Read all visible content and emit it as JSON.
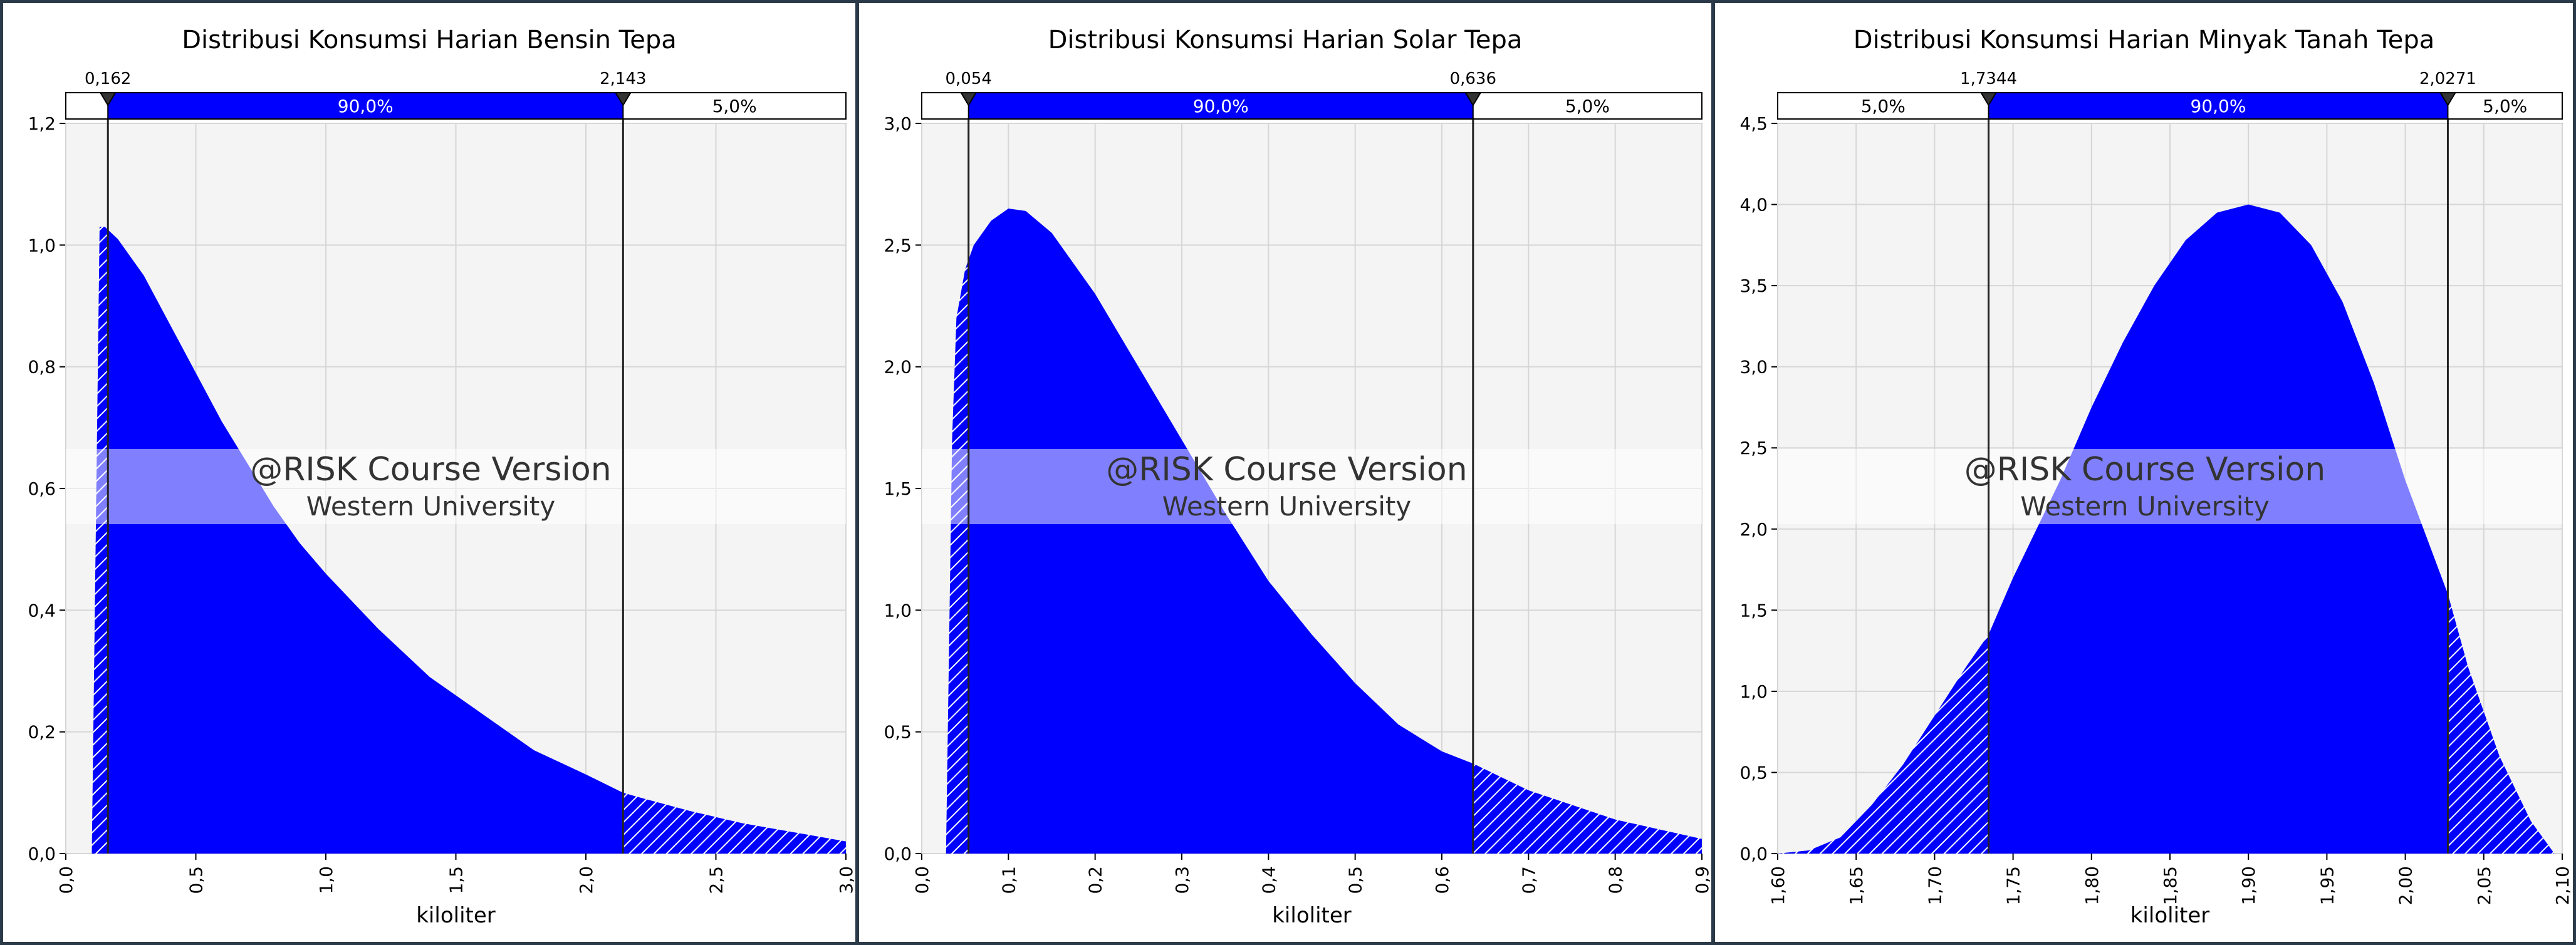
{
  "watermark": {
    "line1": "@RISK Course Version",
    "line2": "Western University"
  },
  "colors": {
    "fill": "#0000ff",
    "plot_bg": "#f4f4f4",
    "grid": "#d6d6d6",
    "border": "#2b3a48"
  },
  "chart_data": [
    {
      "type": "area",
      "title": "Distribusi Konsumsi Harian Bensin Tepa",
      "xlabel": "kiloliter",
      "ylabel": "",
      "xlim": [
        0,
        3.0
      ],
      "ylim": [
        0,
        1.2
      ],
      "x_ticks": [
        "0,0",
        "0,5",
        "1,0",
        "1,5",
        "2,0",
        "2,5",
        "3,0"
      ],
      "y_ticks": [
        "0,0",
        "0,2",
        "0,4",
        "0,6",
        "0,8",
        "1,0",
        "1,2"
      ],
      "markers": {
        "left_value": 0.162,
        "right_value": 2.143,
        "left_label": "0,162",
        "right_label": "2,143"
      },
      "bands": {
        "left": "",
        "middle": "90,0%",
        "right": "5,0%"
      },
      "curve": {
        "x": [
          0.1,
          0.13,
          0.15,
          0.2,
          0.3,
          0.4,
          0.5,
          0.6,
          0.7,
          0.8,
          0.9,
          1.0,
          1.2,
          1.4,
          1.6,
          1.8,
          2.0,
          2.143,
          2.2,
          2.4,
          2.6,
          2.8,
          3.0
        ],
        "y": [
          0.0,
          1.03,
          1.03,
          1.01,
          0.95,
          0.87,
          0.79,
          0.71,
          0.64,
          0.57,
          0.51,
          0.46,
          0.37,
          0.29,
          0.23,
          0.17,
          0.13,
          0.1,
          0.093,
          0.07,
          0.05,
          0.035,
          0.02
        ]
      }
    },
    {
      "type": "area",
      "title": "Distribusi Konsumsi Harian Solar Tepa",
      "xlabel": "kiloliter",
      "ylabel": "",
      "xlim": [
        0,
        0.9
      ],
      "ylim": [
        0,
        3.0
      ],
      "x_ticks": [
        "0,0",
        "0,1",
        "0,2",
        "0,3",
        "0,4",
        "0,5",
        "0,6",
        "0,7",
        "0,8",
        "0,9"
      ],
      "y_ticks": [
        "0,0",
        "0,5",
        "1,0",
        "1,5",
        "2,0",
        "2,5",
        "3,0"
      ],
      "markers": {
        "left_value": 0.054,
        "right_value": 0.636,
        "left_label": "0,054",
        "right_label": "0,636"
      },
      "bands": {
        "left": "",
        "middle": "90,0%",
        "right": "5,0%"
      },
      "curve": {
        "x": [
          0.028,
          0.035,
          0.04,
          0.05,
          0.06,
          0.08,
          0.1,
          0.12,
          0.15,
          0.2,
          0.25,
          0.3,
          0.35,
          0.4,
          0.45,
          0.5,
          0.55,
          0.6,
          0.636,
          0.7,
          0.8,
          0.9
        ],
        "y": [
          0.0,
          1.7,
          2.2,
          2.4,
          2.5,
          2.6,
          2.65,
          2.64,
          2.55,
          2.3,
          2.0,
          1.7,
          1.4,
          1.12,
          0.9,
          0.7,
          0.53,
          0.42,
          0.37,
          0.26,
          0.14,
          0.06
        ]
      }
    },
    {
      "type": "area",
      "title": "Distribusi Konsumsi Harian Minyak Tanah Tepa",
      "xlabel": "kiloliter",
      "ylabel": "",
      "xlim": [
        1.6,
        2.1
      ],
      "ylim": [
        0,
        4.5
      ],
      "x_ticks": [
        "1,60",
        "1,65",
        "1,70",
        "1,75",
        "1,80",
        "1,85",
        "1,90",
        "1,95",
        "2,00",
        "2,05",
        "2,10"
      ],
      "y_ticks": [
        "0,0",
        "0,5",
        "1,0",
        "1,5",
        "2,0",
        "2,5",
        "3,0",
        "3,5",
        "4,0",
        "4,5"
      ],
      "markers": {
        "left_value": 1.7344,
        "right_value": 2.0271,
        "left_label": "1,7344",
        "right_label": "2,0271"
      },
      "bands": {
        "left": "5,0%",
        "middle": "90,0%",
        "right": "5,0%"
      },
      "curve": {
        "x": [
          1.6,
          1.62,
          1.64,
          1.66,
          1.68,
          1.7,
          1.72,
          1.7344,
          1.75,
          1.78,
          1.8,
          1.82,
          1.84,
          1.86,
          1.88,
          1.9,
          1.92,
          1.94,
          1.96,
          1.98,
          2.0,
          2.0271,
          2.04,
          2.06,
          2.08,
          2.095
        ],
        "y": [
          0.0,
          0.02,
          0.1,
          0.3,
          0.55,
          0.85,
          1.15,
          1.35,
          1.7,
          2.3,
          2.75,
          3.15,
          3.5,
          3.78,
          3.95,
          4.0,
          3.95,
          3.75,
          3.4,
          2.9,
          2.3,
          1.6,
          1.15,
          0.6,
          0.2,
          0.0
        ]
      }
    }
  ]
}
